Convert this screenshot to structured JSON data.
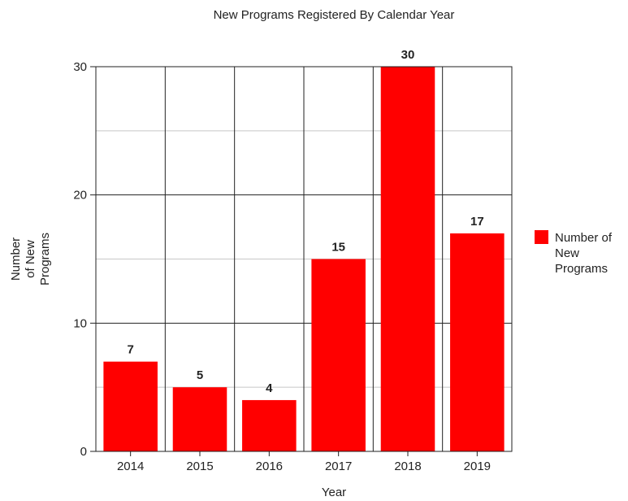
{
  "chart_data": {
    "type": "bar",
    "title": "New Programs Registered By Calendar Year",
    "xlabel": "Year",
    "ylabel_lines": [
      "Number",
      "of New",
      "Programs"
    ],
    "categories": [
      "2014",
      "2015",
      "2016",
      "2017",
      "2018",
      "2019"
    ],
    "series": [
      {
        "name": "Number of New Programs",
        "values": [
          7,
          5,
          4,
          15,
          30,
          17
        ],
        "color": "#ff0000"
      }
    ],
    "legend": {
      "position": "right",
      "lines": [
        "Number of",
        "New",
        "Programs"
      ]
    },
    "ylim": [
      0,
      30
    ],
    "yticks": [
      0,
      10,
      20,
      30
    ],
    "minor_gridlines": [
      5,
      15,
      25
    ],
    "grid": true
  }
}
